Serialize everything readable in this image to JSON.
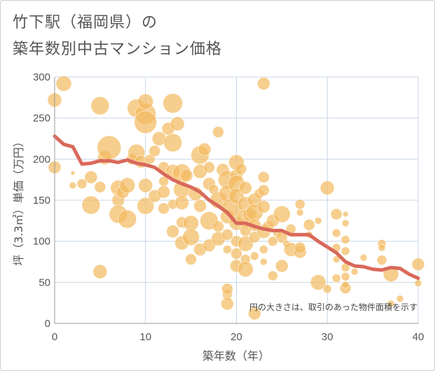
{
  "title_line1": "竹下駅（福岡県）の",
  "title_line2": "築年数別中古マンション価格",
  "chart_data": {
    "type": "scatter",
    "xlabel": "築年数（年）",
    "ylabel": "坪（3.3㎡）単価（万円）",
    "xlim": [
      0,
      40
    ],
    "ylim": [
      0,
      300
    ],
    "xticks": [
      "0",
      "10",
      "20",
      "30",
      "40"
    ],
    "yticks": [
      "0",
      "50",
      "100",
      "150",
      "200",
      "250",
      "300"
    ],
    "grid": true,
    "annotation": "円の大きさは、取引のあった物件面積を示す",
    "bubble_color": "#f2bb62",
    "line_color": "#d9695a",
    "points": [
      [
        0,
        272,
        10
      ],
      [
        1,
        292,
        11
      ],
      [
        0,
        190,
        9
      ],
      [
        2,
        183,
        3
      ],
      [
        2,
        168,
        5
      ],
      [
        3,
        170,
        7
      ],
      [
        4,
        178,
        9
      ],
      [
        4,
        144,
        13
      ],
      [
        5,
        265,
        13
      ],
      [
        5,
        63,
        10
      ],
      [
        5,
        166,
        8
      ],
      [
        5.5,
        202,
        10
      ],
      [
        6,
        214,
        17
      ],
      [
        7,
        150,
        9
      ],
      [
        7,
        133,
        13
      ],
      [
        7,
        165,
        11
      ],
      [
        7.5,
        160,
        9
      ],
      [
        8,
        168,
        11
      ],
      [
        8,
        127,
        13
      ],
      [
        8.5,
        200,
        8
      ],
      [
        9,
        208,
        12
      ],
      [
        9,
        262,
        13
      ],
      [
        9.5,
        197,
        9
      ],
      [
        10,
        255,
        15
      ],
      [
        10,
        245,
        16
      ],
      [
        10,
        270,
        11
      ],
      [
        10,
        168,
        10
      ],
      [
        10,
        143,
        12
      ],
      [
        10.5,
        200,
        7
      ],
      [
        11,
        210,
        8
      ],
      [
        11,
        155,
        9
      ],
      [
        11.5,
        225,
        10
      ],
      [
        12,
        190,
        8
      ],
      [
        12,
        173,
        7
      ],
      [
        12,
        160,
        9
      ],
      [
        12,
        140,
        8
      ],
      [
        12.5,
        237,
        9
      ],
      [
        13,
        268,
        14
      ],
      [
        13,
        220,
        13
      ],
      [
        13,
        185,
        10
      ],
      [
        13,
        145,
        7
      ],
      [
        13,
        112,
        9
      ],
      [
        13.5,
        243,
        10
      ],
      [
        14,
        183,
        13
      ],
      [
        14,
        163,
        12
      ],
      [
        14,
        147,
        10
      ],
      [
        14,
        98,
        10
      ],
      [
        14,
        123,
        8
      ],
      [
        14.5,
        180,
        9
      ],
      [
        15,
        122,
        11
      ],
      [
        15,
        105,
        12
      ],
      [
        15,
        78,
        8
      ],
      [
        15.5,
        158,
        10
      ],
      [
        16,
        205,
        13
      ],
      [
        16,
        185,
        10
      ],
      [
        16,
        143,
        9
      ],
      [
        16,
        90,
        9
      ],
      [
        16.5,
        212,
        9
      ],
      [
        17,
        190,
        8
      ],
      [
        17,
        170,
        9
      ],
      [
        17,
        125,
        13
      ],
      [
        17,
        95,
        9
      ],
      [
        17.5,
        163,
        7
      ],
      [
        18,
        233,
        8
      ],
      [
        18,
        150,
        12
      ],
      [
        18,
        118,
        8
      ],
      [
        18,
        103,
        10
      ],
      [
        18.5,
        187,
        9
      ],
      [
        19,
        175,
        13
      ],
      [
        19,
        158,
        12
      ],
      [
        19,
        130,
        10
      ],
      [
        19,
        108,
        8
      ],
      [
        19,
        90,
        6
      ],
      [
        19,
        35,
        7
      ],
      [
        19,
        42,
        8
      ],
      [
        19,
        24,
        9
      ],
      [
        19.5,
        140,
        14
      ],
      [
        20,
        196,
        11
      ],
      [
        20,
        180,
        9
      ],
      [
        20,
        170,
        12
      ],
      [
        20,
        155,
        11
      ],
      [
        20,
        122,
        10
      ],
      [
        20,
        100,
        8
      ],
      [
        20,
        85,
        8
      ],
      [
        20,
        70,
        9
      ],
      [
        20.5,
        188,
        8
      ],
      [
        21,
        165,
        9
      ],
      [
        21,
        145,
        11
      ],
      [
        21,
        128,
        13
      ],
      [
        21,
        113,
        8
      ],
      [
        21,
        97,
        11
      ],
      [
        21,
        78,
        7
      ],
      [
        21,
        66,
        11
      ],
      [
        21.5,
        132,
        10
      ],
      [
        22,
        150,
        10
      ],
      [
        22,
        135,
        12
      ],
      [
        22,
        120,
        9
      ],
      [
        22,
        105,
        8
      ],
      [
        22,
        82,
        6
      ],
      [
        22,
        12,
        9
      ],
      [
        22.5,
        158,
        7
      ],
      [
        23,
        292,
        9
      ],
      [
        23,
        178,
        8
      ],
      [
        23,
        162,
        8
      ],
      [
        23,
        142,
        9
      ],
      [
        23,
        112,
        10
      ],
      [
        23,
        90,
        6
      ],
      [
        23,
        75,
        5
      ],
      [
        23.5,
        118,
        8
      ],
      [
        24,
        125,
        9
      ],
      [
        24,
        100,
        7
      ],
      [
        24,
        58,
        7
      ],
      [
        24.5,
        110,
        6
      ],
      [
        25,
        133,
        12
      ],
      [
        25,
        105,
        8
      ],
      [
        25,
        70,
        9
      ],
      [
        25.5,
        97,
        5
      ],
      [
        26,
        90,
        10
      ],
      [
        26,
        115,
        7
      ],
      [
        27,
        145,
        7
      ],
      [
        27,
        135,
        5
      ],
      [
        27,
        87,
        9
      ],
      [
        27,
        92,
        8
      ],
      [
        28,
        120,
        8
      ],
      [
        28,
        108,
        5
      ],
      [
        29,
        50,
        11
      ],
      [
        29,
        125,
        5
      ],
      [
        30,
        165,
        10
      ],
      [
        30,
        42,
        6
      ],
      [
        31,
        133,
        8
      ],
      [
        31,
        110,
        6
      ],
      [
        31,
        92,
        6
      ],
      [
        31,
        78,
        5
      ],
      [
        31,
        55,
        6
      ],
      [
        32,
        133,
        4
      ],
      [
        32,
        122,
        5
      ],
      [
        32,
        102,
        6
      ],
      [
        32,
        88,
        6
      ],
      [
        32,
        68,
        6
      ],
      [
        32,
        57,
        6
      ],
      [
        32,
        43,
        8
      ],
      [
        32,
        47,
        5
      ],
      [
        33,
        63,
        5
      ],
      [
        34,
        80,
        5
      ],
      [
        36,
        97,
        6
      ],
      [
        36,
        92,
        5
      ],
      [
        36,
        77,
        7
      ],
      [
        37,
        60,
        11
      ],
      [
        37,
        24,
        5
      ],
      [
        38,
        30,
        5
      ],
      [
        40,
        72,
        9
      ],
      [
        40,
        49,
        5
      ]
    ],
    "avg_line": [
      [
        0,
        228
      ],
      [
        1,
        218
      ],
      [
        2,
        215
      ],
      [
        3,
        194
      ],
      [
        4,
        195
      ],
      [
        5,
        198
      ],
      [
        6,
        198
      ],
      [
        7,
        196
      ],
      [
        8,
        199
      ],
      [
        9,
        195
      ],
      [
        10,
        193
      ],
      [
        11,
        190
      ],
      [
        12,
        182
      ],
      [
        13,
        175
      ],
      [
        14,
        170
      ],
      [
        15,
        166
      ],
      [
        16,
        160
      ],
      [
        17,
        150
      ],
      [
        18,
        143
      ],
      [
        19,
        135
      ],
      [
        20,
        122
      ],
      [
        21,
        122
      ],
      [
        22,
        118
      ],
      [
        23,
        115
      ],
      [
        24,
        113
      ],
      [
        25,
        113
      ],
      [
        26,
        108
      ],
      [
        27,
        108
      ],
      [
        28,
        108
      ],
      [
        29,
        100
      ],
      [
        30,
        93
      ],
      [
        31,
        86
      ],
      [
        32,
        75
      ],
      [
        33,
        70
      ],
      [
        34,
        69
      ],
      [
        35,
        66
      ],
      [
        36,
        65
      ],
      [
        37,
        68
      ],
      [
        38,
        67
      ],
      [
        39,
        60
      ],
      [
        40,
        55
      ]
    ]
  }
}
